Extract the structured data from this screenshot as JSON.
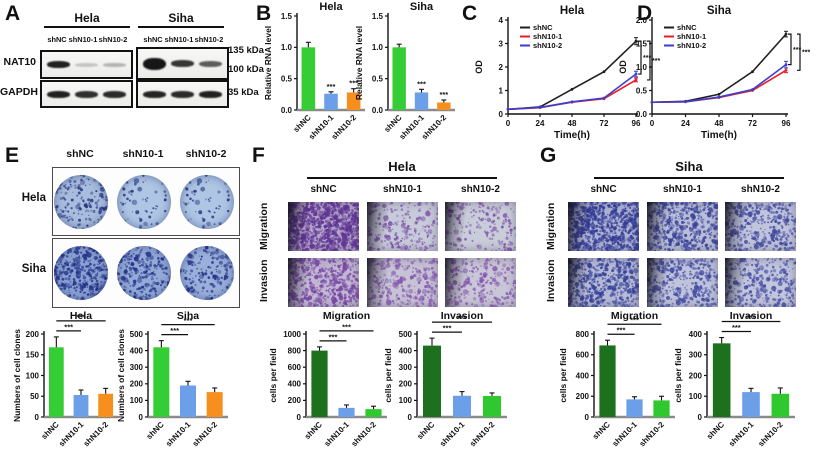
{
  "panel_a": {
    "label": "A",
    "groups": [
      "Hela",
      "Siha"
    ],
    "lanes": [
      "shNC",
      "shN10-1",
      "shN10-2"
    ],
    "proteins": [
      "NAT10",
      "GAPDH"
    ],
    "markers": [
      "135 kDa",
      "100 kDa",
      "35 kDa"
    ],
    "bands": {
      "hela_nat10": [
        {
          "o": 0.95,
          "h": 7
        },
        {
          "o": 0.2,
          "h": 4
        },
        {
          "o": 0.28,
          "h": 4
        }
      ],
      "siha_nat10": [
        {
          "o": 1,
          "h": 12
        },
        {
          "o": 0.85,
          "h": 7
        },
        {
          "o": 0.68,
          "h": 6
        }
      ],
      "hela_gapdh": [
        {
          "o": 0.95,
          "h": 7
        },
        {
          "o": 0.88,
          "h": 7
        },
        {
          "o": 0.9,
          "h": 7
        }
      ],
      "siha_gapdh": [
        {
          "o": 0.93,
          "h": 7
        },
        {
          "o": 0.9,
          "h": 7
        },
        {
          "o": 0.95,
          "h": 7
        }
      ]
    }
  },
  "panel_b": {
    "label": "B"
  },
  "panel_c": {
    "label": "C"
  },
  "panel_d": {
    "label": "D"
  },
  "panel_e": {
    "label": "E",
    "col_headers": [
      "shNC",
      "shN10-1",
      "shN10-2"
    ],
    "row_labels": [
      "Hela",
      "Siha"
    ],
    "dishes": [
      [
        {
          "density": 190,
          "bg": "#a8bddd",
          "dot": "#26357f"
        },
        {
          "density": 70,
          "bg": "#aec6e4",
          "dot": "#26357f"
        },
        {
          "density": 70,
          "bg": "#aec6e4",
          "dot": "#26357f"
        }
      ],
      [
        {
          "density": 430,
          "bg": "#8aa2d3",
          "dot": "#222f84"
        },
        {
          "density": 270,
          "bg": "#94abd8",
          "dot": "#222f84"
        },
        {
          "density": 210,
          "bg": "#9ab0da",
          "dot": "#222f84"
        }
      ]
    ]
  },
  "panel_f": {
    "label": "F",
    "title": "Hela",
    "col_headers": [
      "shNC",
      "shN10-1",
      "shN10-2"
    ],
    "row_labels": [
      "Migration",
      "Invasion"
    ],
    "images": [
      [
        {
          "density": 950,
          "bg": "#b7a6cb",
          "dot": "#5e3492"
        },
        {
          "density": 230,
          "bg": "#c7cad9",
          "dot": "#7a4fa8"
        },
        {
          "density": 210,
          "bg": "#c9ccd9",
          "dot": "#7a4fa8"
        }
      ],
      [
        {
          "density": 520,
          "bg": "#c2b8d3",
          "dot": "#7444a2"
        },
        {
          "density": 300,
          "bg": "#c7c3d6",
          "dot": "#8457ae"
        },
        {
          "density": 270,
          "bg": "#c9c6d7",
          "dot": "#8457ae"
        }
      ]
    ]
  },
  "panel_g": {
    "label": "G",
    "title": "Siha",
    "col_headers": [
      "shNC",
      "shN10-1",
      "shN10-2"
    ],
    "row_labels": [
      "Migration",
      "Invasion"
    ],
    "images": [
      [
        {
          "density": 820,
          "bg": "#aeb3d6",
          "dot": "#323b92"
        },
        {
          "density": 480,
          "bg": "#babfd9",
          "dot": "#3a4298"
        },
        {
          "density": 400,
          "bg": "#c0c4dc",
          "dot": "#40489c"
        }
      ],
      [
        {
          "density": 560,
          "bg": "#b6bbd8",
          "dot": "#374096"
        },
        {
          "density": 400,
          "bg": "#bfc3db",
          "dot": "#424aa0"
        },
        {
          "density": 340,
          "bg": "#c2c6dd",
          "dot": "#454da2"
        }
      ]
    ]
  },
  "chart_data": [
    {
      "id": "b_hela",
      "type": "bar",
      "title": "Hela",
      "ylabel": "Relative RNA level",
      "categories": [
        "shNC",
        "shN10-1",
        "shN10-2"
      ],
      "values": [
        1.0,
        0.26,
        0.28
      ],
      "errors": [
        0.08,
        0.03,
        0.06
      ],
      "ylim": [
        0,
        1.5
      ],
      "yticks": [
        0,
        0.5,
        1.0,
        1.5
      ],
      "ytick_labels": [
        "0.0",
        "0.5",
        "1.0",
        "1.5"
      ],
      "colors": [
        "#35cd35",
        "#6b9fe8",
        "#f78f1e"
      ],
      "stars": [
        "",
        "***",
        "***"
      ]
    },
    {
      "id": "b_siha",
      "type": "bar",
      "title": "Siha",
      "ylabel": "Relative RNA level",
      "categories": [
        "shNC",
        "shN10-1",
        "shN10-2"
      ],
      "values": [
        1.0,
        0.28,
        0.12
      ],
      "errors": [
        0.05,
        0.05,
        0.04
      ],
      "ylim": [
        0,
        1.5
      ],
      "yticks": [
        0,
        0.5,
        1.0,
        1.5
      ],
      "ytick_labels": [
        "0.0",
        "0.5",
        "1.0",
        "1.5"
      ],
      "colors": [
        "#35cd35",
        "#6b9fe8",
        "#f78f1e"
      ],
      "stars": [
        "",
        "***",
        "***"
      ]
    },
    {
      "id": "c_hela",
      "type": "line",
      "title": "Hela",
      "ylabel": "OD",
      "xlabel": "Time(h)",
      "x": [
        0,
        24,
        48,
        72,
        96
      ],
      "series": [
        {
          "name": "shNC",
          "values": [
            0.2,
            0.3,
            1.05,
            1.8,
            3.1
          ],
          "err_last": 0.15
        },
        {
          "name": "shN10-1",
          "values": [
            0.2,
            0.27,
            0.5,
            0.65,
            1.45
          ],
          "err_last": 0.08
        },
        {
          "name": "shN10-2",
          "values": [
            0.2,
            0.28,
            0.52,
            0.68,
            1.7
          ],
          "err_last": 0.12
        }
      ],
      "ylim": [
        0,
        4
      ],
      "yticks": [
        0,
        1,
        2,
        3,
        4
      ],
      "ytick_labels": [
        "0",
        "1",
        "2",
        "3",
        "4"
      ],
      "colors": [
        "#231f20",
        "#ec1c24",
        "#3a3fd0"
      ],
      "brackets": [
        {
          "a": 0,
          "b": 2,
          "label": "***"
        },
        {
          "a": 0,
          "b": 1,
          "label": "***"
        }
      ]
    },
    {
      "id": "d_siha",
      "type": "line",
      "title": "Siha",
      "ylabel": "OD",
      "xlabel": "Time(h)",
      "x": [
        0,
        24,
        48,
        72,
        96
      ],
      "series": [
        {
          "name": "shNC",
          "values": [
            0.25,
            0.27,
            0.42,
            0.9,
            1.7
          ],
          "err_last": 0.06
        },
        {
          "name": "shN10-1",
          "values": [
            0.25,
            0.26,
            0.35,
            0.5,
            0.93
          ],
          "err_last": 0.05
        },
        {
          "name": "shN10-2",
          "values": [
            0.25,
            0.26,
            0.36,
            0.52,
            1.05
          ],
          "err_last": 0.07
        }
      ],
      "ylim": [
        0,
        2
      ],
      "yticks": [
        0,
        0.5,
        1.0,
        1.5,
        2.0
      ],
      "ytick_labels": [
        "0.0",
        "0.5",
        "1.0",
        "1.5",
        "2.0"
      ],
      "colors": [
        "#231f20",
        "#ec1c24",
        "#3a3fd0"
      ],
      "brackets": [
        {
          "a": 0,
          "b": 2,
          "label": "***"
        },
        {
          "a": 0,
          "b": 1,
          "label": "***"
        }
      ]
    },
    {
      "id": "e_hela",
      "type": "bar",
      "title": "Hela",
      "ylabel": "Numbers of cell clones",
      "categories": [
        "shNC",
        "shN10-1",
        "shN10-2"
      ],
      "values": [
        168,
        53,
        56
      ],
      "errors": [
        25,
        12,
        13
      ],
      "ylim": [
        0,
        200
      ],
      "yticks": [
        0,
        50,
        100,
        150,
        200
      ],
      "ytick_labels": [
        "0",
        "50",
        "100",
        "150",
        "200"
      ],
      "colors": [
        "#35cd35",
        "#6b9fe8",
        "#f78f1e"
      ],
      "brackets": [
        {
          "a": 0,
          "b": 1,
          "label": "***"
        },
        {
          "a": 0,
          "b": 2,
          "label": "***"
        }
      ]
    },
    {
      "id": "e_siha",
      "type": "bar",
      "title": "Siha",
      "ylabel": "Numbers of cell clones",
      "categories": [
        "shNC",
        "shN10-1",
        "shN10-2"
      ],
      "values": [
        420,
        190,
        150
      ],
      "errors": [
        40,
        25,
        25
      ],
      "ylim": [
        0,
        500
      ],
      "yticks": [
        0,
        100,
        200,
        300,
        400,
        500
      ],
      "ytick_labels": [
        "0",
        "100",
        "200",
        "300",
        "400",
        "500"
      ],
      "colors": [
        "#35cd35",
        "#6b9fe8",
        "#f78f1e"
      ],
      "brackets": [
        {
          "a": 0,
          "b": 1,
          "label": "***"
        },
        {
          "a": 0,
          "b": 2,
          "label": "***"
        }
      ]
    },
    {
      "id": "f_migration",
      "type": "bar",
      "title": "Migration",
      "ylabel": "cells per field",
      "categories": [
        "shNC",
        "shN10-1",
        "shN10-2"
      ],
      "values": [
        800,
        110,
        95
      ],
      "errors": [
        45,
        35,
        35
      ],
      "ylim": [
        0,
        1000
      ],
      "yticks": [
        0,
        200,
        400,
        600,
        800,
        1000
      ],
      "ytick_labels": [
        "0",
        "200",
        "400",
        "600",
        "800",
        "1000"
      ],
      "colors": [
        "#1d701d",
        "#6b9fe8",
        "#2fc92f"
      ],
      "brackets": [
        {
          "a": 0,
          "b": 1,
          "label": "***"
        },
        {
          "a": 0,
          "b": 2,
          "label": "***"
        }
      ]
    },
    {
      "id": "f_invasion",
      "type": "bar",
      "title": "Invasion",
      "ylabel": "cells per field",
      "categories": [
        "shNC",
        "shN10-1",
        "shN10-2"
      ],
      "values": [
        430,
        128,
        127
      ],
      "errors": [
        45,
        25,
        18
      ],
      "ylim": [
        0,
        500
      ],
      "yticks": [
        0,
        100,
        200,
        300,
        400,
        500
      ],
      "ytick_labels": [
        "0",
        "100",
        "200",
        "300",
        "400",
        "500"
      ],
      "colors": [
        "#1d701d",
        "#6b9fe8",
        "#2fc92f"
      ],
      "brackets": [
        {
          "a": 0,
          "b": 1,
          "label": "***"
        },
        {
          "a": 0,
          "b": 2,
          "label": "***"
        }
      ]
    },
    {
      "id": "g_migration",
      "type": "bar",
      "title": "Migration",
      "ylabel": "cells per field",
      "categories": [
        "shNC",
        "shN10-1",
        "shN10-2"
      ],
      "values": [
        690,
        170,
        160
      ],
      "errors": [
        50,
        25,
        40
      ],
      "ylim": [
        0,
        800
      ],
      "yticks": [
        0,
        200,
        400,
        600,
        800
      ],
      "ytick_labels": [
        "0",
        "200",
        "400",
        "600",
        "800"
      ],
      "colors": [
        "#1d701d",
        "#6b9fe8",
        "#2fc92f"
      ],
      "brackets": [
        {
          "a": 0,
          "b": 1,
          "label": "***"
        },
        {
          "a": 0,
          "b": 2,
          "label": "***"
        }
      ]
    },
    {
      "id": "g_invasion",
      "type": "bar",
      "title": "Invasion",
      "ylabel": "cells per field",
      "categories": [
        "shNC",
        "shN10-1",
        "shN10-2"
      ],
      "values": [
        355,
        120,
        112
      ],
      "errors": [
        28,
        18,
        28
      ],
      "ylim": [
        0,
        400
      ],
      "yticks": [
        0,
        100,
        200,
        300,
        400
      ],
      "ytick_labels": [
        "0",
        "100",
        "200",
        "300",
        "400"
      ],
      "colors": [
        "#1d701d",
        "#6b9fe8",
        "#2fc92f"
      ],
      "brackets": [
        {
          "a": 0,
          "b": 1,
          "label": "***"
        },
        {
          "a": 0,
          "b": 2,
          "label": "***"
        }
      ]
    }
  ]
}
